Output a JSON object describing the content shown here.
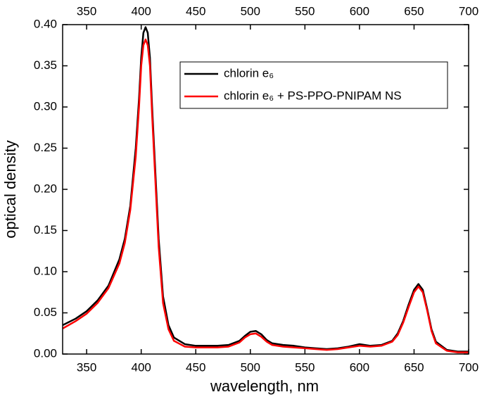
{
  "chart_data": {
    "type": "line",
    "xlabel": "wavelength, nm",
    "ylabel": "optical density",
    "x": [
      328,
      340,
      350,
      360,
      370,
      380,
      385,
      390,
      395,
      398,
      400,
      402,
      404,
      406,
      408,
      410,
      413,
      416,
      420,
      425,
      430,
      440,
      450,
      460,
      470,
      480,
      490,
      495,
      500,
      505,
      510,
      515,
      520,
      530,
      540,
      550,
      560,
      570,
      580,
      590,
      600,
      610,
      620,
      630,
      635,
      640,
      645,
      650,
      654,
      658,
      662,
      666,
      670,
      680,
      690,
      700
    ],
    "series": [
      {
        "name": "chlorin e₆",
        "color": "#000000",
        "values": [
          0.035,
          0.043,
          0.052,
          0.065,
          0.083,
          0.115,
          0.14,
          0.18,
          0.25,
          0.31,
          0.36,
          0.39,
          0.397,
          0.39,
          0.36,
          0.3,
          0.22,
          0.14,
          0.07,
          0.035,
          0.02,
          0.012,
          0.01,
          0.01,
          0.01,
          0.011,
          0.016,
          0.022,
          0.027,
          0.028,
          0.024,
          0.017,
          0.013,
          0.011,
          0.01,
          0.008,
          0.007,
          0.006,
          0.007,
          0.009,
          0.012,
          0.01,
          0.011,
          0.016,
          0.025,
          0.04,
          0.06,
          0.078,
          0.085,
          0.078,
          0.055,
          0.03,
          0.015,
          0.005,
          0.003,
          0.003
        ]
      },
      {
        "name": "chlorin e₆ + PS-PPO-PNIPAM NS",
        "color": "#ff0000",
        "values": [
          0.031,
          0.04,
          0.049,
          0.062,
          0.08,
          0.11,
          0.135,
          0.175,
          0.24,
          0.3,
          0.35,
          0.375,
          0.382,
          0.375,
          0.35,
          0.29,
          0.21,
          0.13,
          0.062,
          0.03,
          0.016,
          0.009,
          0.008,
          0.008,
          0.008,
          0.009,
          0.014,
          0.02,
          0.024,
          0.025,
          0.021,
          0.015,
          0.011,
          0.009,
          0.008,
          0.007,
          0.006,
          0.005,
          0.006,
          0.008,
          0.01,
          0.009,
          0.01,
          0.015,
          0.023,
          0.038,
          0.057,
          0.075,
          0.082,
          0.075,
          0.053,
          0.028,
          0.013,
          0.004,
          0.002,
          0.002
        ]
      }
    ],
    "xlim": [
      328,
      700
    ],
    "ylim": [
      0,
      0.4
    ],
    "xticks": [
      350,
      400,
      450,
      500,
      550,
      600,
      650,
      700
    ],
    "yticks": [
      {
        "value": 0,
        "label": "0.00"
      },
      {
        "value": 0.05,
        "label": "0.05"
      },
      {
        "value": 0.1,
        "label": "0.10"
      },
      {
        "value": 0.15,
        "label": "0.15"
      },
      {
        "value": 0.2,
        "label": "0.20"
      },
      {
        "value": 0.25,
        "label": "0.25"
      },
      {
        "value": 0.3,
        "label": "0.30"
      },
      {
        "value": 0.35,
        "label": "0.35"
      },
      {
        "value": 0.4,
        "label": "0.40"
      }
    ],
    "legend": "upper right",
    "grid": false
  }
}
